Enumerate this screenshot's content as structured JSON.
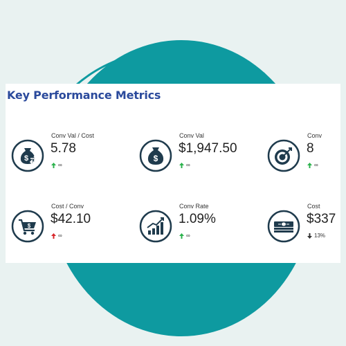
{
  "panel": {
    "title": "Key Performance Metrics"
  },
  "colors": {
    "background": "#e9f2f1",
    "teal": "#0e9aa0",
    "title": "#2b4a9c",
    "icon_dark": "#1f3b4d",
    "up": "#2bb24c",
    "down_red": "#d8262a",
    "down_dark": "#333333"
  },
  "metrics": [
    {
      "label": "Conv Val / Cost",
      "value": "5.78",
      "change": "∞",
      "direction": "up",
      "icon": "money-bag-exchange-icon"
    },
    {
      "label": "Conv Val",
      "value": "$1,947.50",
      "change": "∞",
      "direction": "up",
      "icon": "money-bag-icon"
    },
    {
      "label": "Conv",
      "value": "8",
      "change": "∞",
      "direction": "up",
      "icon": "target-icon"
    },
    {
      "label": "Cost / Conv",
      "value": "$42.10",
      "change": "∞",
      "direction": "up-red",
      "icon": "shopping-cart-dollar-icon"
    },
    {
      "label": "Conv Rate",
      "value": "1.09%",
      "change": "∞",
      "direction": "up",
      "icon": "growth-chart-icon"
    },
    {
      "label": "Cost",
      "value": "$337",
      "change": "13%",
      "direction": "down",
      "icon": "cash-stack-icon"
    }
  ]
}
